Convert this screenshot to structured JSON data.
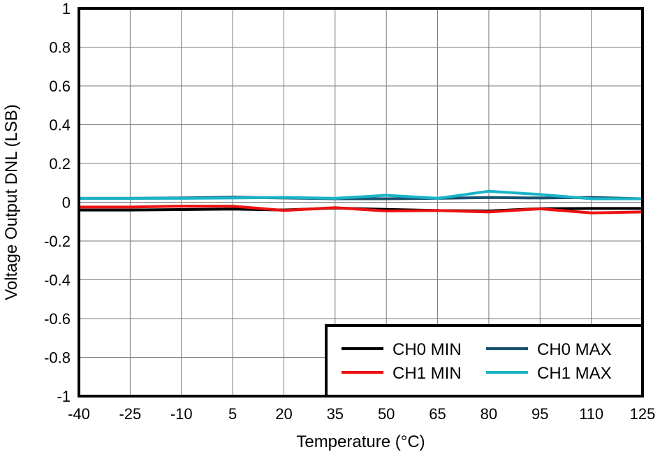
{
  "chart_data": {
    "type": "line",
    "title": "",
    "xlabel": "Temperature (°C)",
    "ylabel": "Voltage Output DNL (LSB)",
    "xlim": [
      -40,
      125
    ],
    "ylim": [
      -1,
      1
    ],
    "x_ticks": [
      -40,
      -25,
      -10,
      5,
      20,
      35,
      50,
      65,
      80,
      95,
      110,
      125
    ],
    "x_tick_labels": [
      "-40",
      "-25",
      "-10",
      "5",
      "20",
      "35",
      "50",
      "65",
      "80",
      "95",
      "110",
      "125"
    ],
    "y_ticks": [
      -1,
      -0.8,
      -0.6,
      -0.4,
      -0.2,
      0,
      0.2,
      0.4,
      0.6,
      0.8,
      1
    ],
    "y_tick_labels": [
      "-1",
      "-0.8",
      "-0.6",
      "-0.4",
      "-0.2",
      "0",
      "0.2",
      "0.4",
      "0.6",
      "0.8",
      "1"
    ],
    "grid": true,
    "legend_position": "bottom-right",
    "x": [
      -40,
      -25,
      -10,
      5,
      20,
      35,
      50,
      65,
      80,
      95,
      110,
      125
    ],
    "series": [
      {
        "name": "CH0 MIN",
        "color": "#000000",
        "values": [
          -0.04,
          -0.04,
          -0.038,
          -0.035,
          -0.04,
          -0.03,
          -0.037,
          -0.043,
          -0.045,
          -0.033,
          -0.032,
          -0.032
        ]
      },
      {
        "name": "CH0 MAX",
        "color": "#1a5270",
        "values": [
          0.02,
          0.02,
          0.022,
          0.026,
          0.022,
          0.018,
          0.018,
          0.02,
          0.024,
          0.022,
          0.025,
          0.018
        ]
      },
      {
        "name": "CH1 MIN",
        "color": "#ee1111",
        "values": [
          -0.025,
          -0.025,
          -0.02,
          -0.02,
          -0.042,
          -0.028,
          -0.045,
          -0.043,
          -0.05,
          -0.034,
          -0.055,
          -0.05
        ]
      },
      {
        "name": "CH1 MAX",
        "color": "#1ab4c8",
        "values": [
          0.02,
          0.02,
          0.02,
          0.022,
          0.025,
          0.02,
          0.036,
          0.02,
          0.057,
          0.04,
          0.018,
          0.018
        ]
      }
    ]
  }
}
